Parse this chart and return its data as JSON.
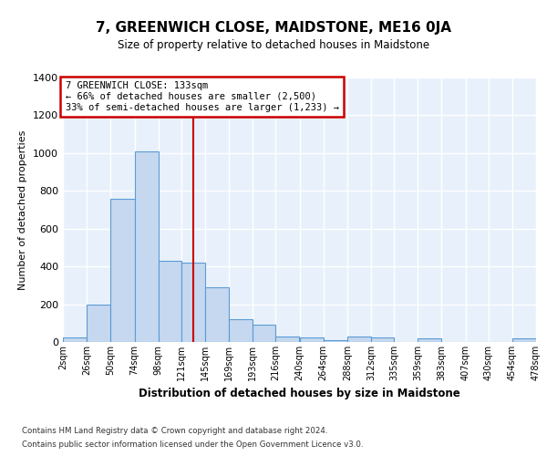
{
  "title": "7, GREENWICH CLOSE, MAIDSTONE, ME16 0JA",
  "subtitle": "Size of property relative to detached houses in Maidstone",
  "xlabel": "Distribution of detached houses by size in Maidstone",
  "ylabel": "Number of detached properties",
  "bin_edges": [
    2,
    26,
    50,
    74,
    98,
    121,
    145,
    169,
    193,
    216,
    240,
    264,
    288,
    312,
    335,
    359,
    383,
    407,
    430,
    454,
    478
  ],
  "bar_heights": [
    25,
    200,
    760,
    1010,
    430,
    420,
    290,
    120,
    90,
    30,
    25,
    10,
    30,
    25,
    0,
    20,
    0,
    0,
    0,
    20
  ],
  "bar_color": "#C5D8EF",
  "bar_edge_color": "#5B9BD5",
  "bar_edge_width": 0.8,
  "ref_line_x": 133,
  "ref_line_color": "#CC0000",
  "ylim": [
    0,
    1400
  ],
  "yticks": [
    0,
    200,
    400,
    600,
    800,
    1000,
    1200,
    1400
  ],
  "annotation_box_text": "7 GREENWICH CLOSE: 133sqm\n← 66% of detached houses are smaller (2,500)\n33% of semi-detached houses are larger (1,233) →",
  "annotation_box_color": "#CC0000",
  "annotation_box_facecolor": "white",
  "footer_line1": "Contains HM Land Registry data © Crown copyright and database right 2024.",
  "footer_line2": "Contains public sector information licensed under the Open Government Licence v3.0.",
  "background_color": "#E8F1FB",
  "grid_color": "white",
  "tick_labels": [
    "2sqm",
    "26sqm",
    "50sqm",
    "74sqm",
    "98sqm",
    "121sqm",
    "145sqm",
    "169sqm",
    "193sqm",
    "216sqm",
    "240sqm",
    "264sqm",
    "288sqm",
    "312sqm",
    "335sqm",
    "359sqm",
    "383sqm",
    "407sqm",
    "430sqm",
    "454sqm",
    "478sqm"
  ]
}
